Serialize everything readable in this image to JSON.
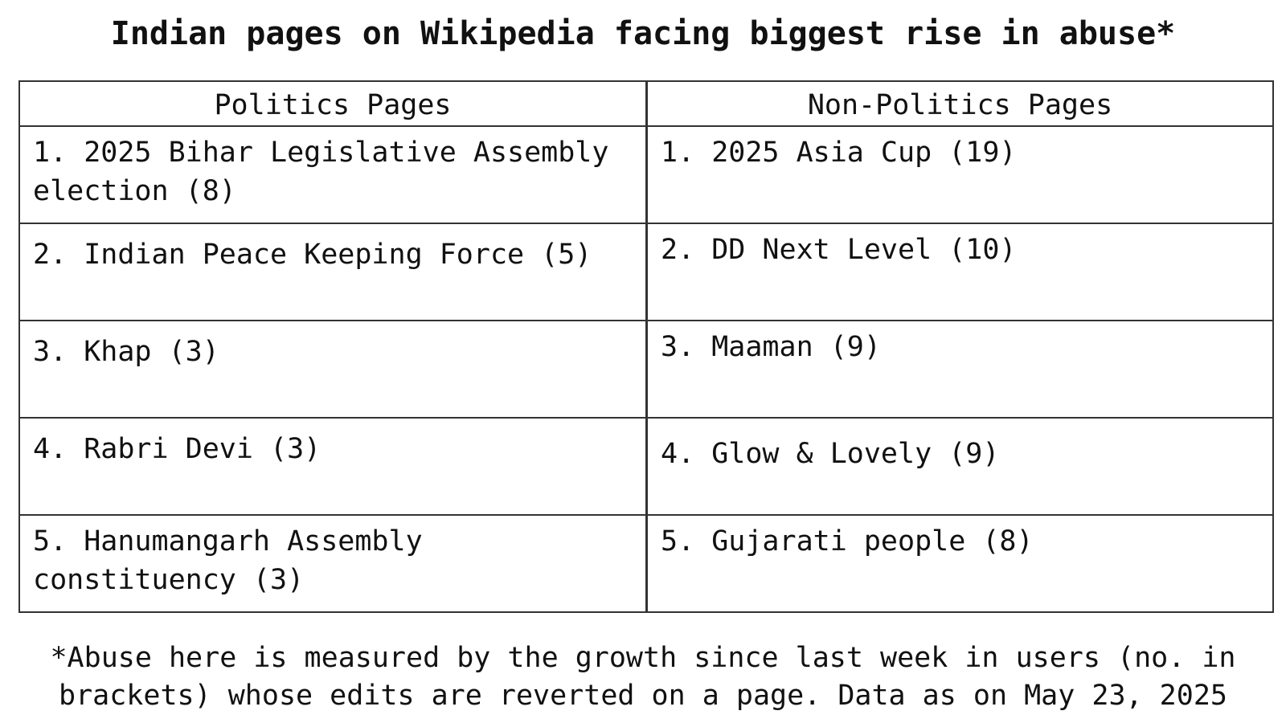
{
  "title": "Indian pages on Wikipedia facing biggest rise in abuse*",
  "table": {
    "politics": {
      "header": "Politics Pages",
      "items": [
        "1. 2025 Bihar Legislative Assembly election (8)",
        "2. Indian Peace Keeping Force (5)",
        "3. Khap (3)",
        "4. Rabri Devi (3)",
        "5. Hanumangarh Assembly constituency (3)"
      ]
    },
    "non_politics": {
      "header": "Non-Politics Pages",
      "items": [
        "1. 2025 Asia Cup (19)",
        "2. DD Next Level (10)",
        "3. Maaman (9)",
        "4. Glow & Lovely (9)",
        "5. Gujarati people (8)"
      ]
    }
  },
  "footnote": {
    "line1": "*Abuse here is measured by the growth since last week in users (no. in",
    "line2": "brackets) whose edits are reverted on a page. Data as on May 23, 2025"
  }
}
